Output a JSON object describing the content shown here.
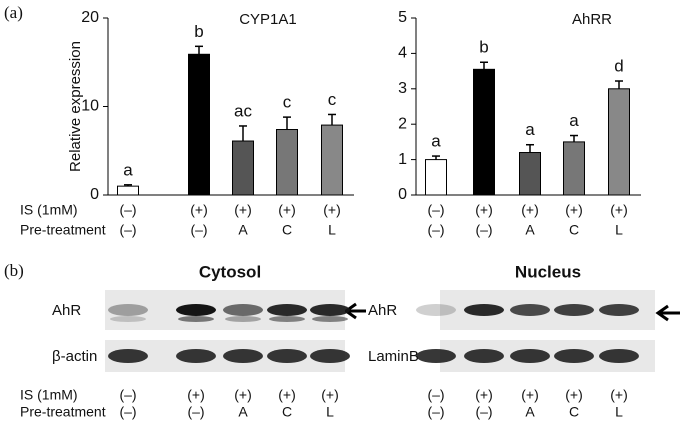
{
  "chart_data": [
    {
      "type": "bar",
      "title": "CYP1A1",
      "y_label": "Relative expression",
      "row_labels": [
        "IS (1mM)",
        "Pre-treatment"
      ],
      "categories": [
        "(–)",
        "(+)",
        "(+)",
        "(+)",
        "(+)"
      ],
      "categories2": [
        "(–)",
        "(–)",
        "A",
        "C",
        "L"
      ],
      "values": [
        1.0,
        15.9,
        6.1,
        7.4,
        7.9
      ],
      "errors": [
        0.15,
        0.9,
        1.7,
        1.4,
        1.2
      ],
      "letters": [
        "a",
        "b",
        "ac",
        "c",
        "c"
      ],
      "colors": [
        "#ffffff",
        "#000000",
        "#555555",
        "#777777",
        "#888888"
      ],
      "ylim": [
        0,
        20
      ],
      "yticks": [
        0,
        10,
        20
      ]
    },
    {
      "type": "bar",
      "title": "AhRR",
      "categories": [
        "(–)",
        "(+)",
        "(+)",
        "(+)",
        "(+)"
      ],
      "categories2": [
        "(–)",
        "(–)",
        "A",
        "C",
        "L"
      ],
      "values": [
        1.0,
        3.55,
        1.2,
        1.5,
        3.0
      ],
      "errors": [
        0.1,
        0.2,
        0.22,
        0.18,
        0.22
      ],
      "letters": [
        "a",
        "b",
        "a",
        "a",
        "d"
      ],
      "colors": [
        "#ffffff",
        "#000000",
        "#555555",
        "#777777",
        "#888888"
      ],
      "ylim": [
        0,
        5
      ],
      "yticks": [
        0,
        1,
        2,
        3,
        4,
        5
      ]
    }
  ],
  "panel_a": "(a)",
  "panel_b": "(b)",
  "blots": {
    "row_labels": [
      "IS (1mM)",
      "Pre-treatment"
    ],
    "panels": [
      {
        "title": "Cytosol",
        "rows": [
          "AhR",
          "β-actin"
        ],
        "lanes": [
          "(–)",
          "(+)",
          "(+)",
          "(+)",
          "(+)"
        ],
        "lanes2": [
          "(–)",
          "(–)",
          "A",
          "C",
          "L"
        ]
      },
      {
        "title": "Nucleus",
        "rows": [
          "AhR",
          "LaminB"
        ],
        "lanes": [
          "(–)",
          "(+)",
          "(+)",
          "(+)",
          "(+)"
        ],
        "lanes2": [
          "(–)",
          "(–)",
          "A",
          "C",
          "L"
        ]
      }
    ]
  }
}
